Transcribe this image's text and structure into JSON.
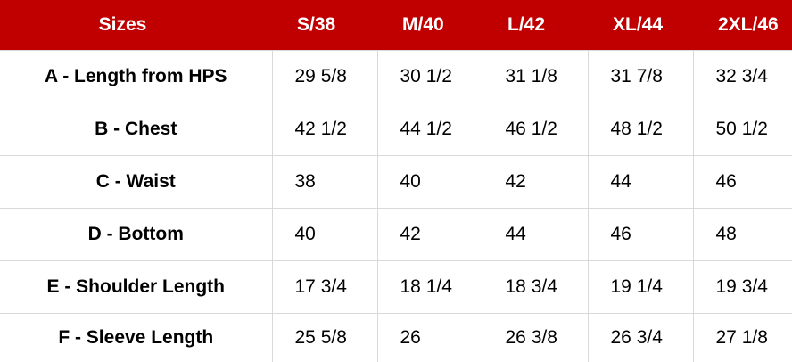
{
  "table": {
    "header": [
      "Sizes",
      "S/38",
      "M/40",
      "L/42",
      "XL/44",
      "2XL/46"
    ],
    "rows": [
      [
        "A - Length from HPS",
        "29 5/8",
        "30 1/2",
        "31 1/8",
        "31 7/8",
        "32 3/4"
      ],
      [
        "B - Chest",
        "42 1/2",
        "44 1/2",
        "46 1/2",
        "48 1/2",
        "50 1/2"
      ],
      [
        "C - Waist",
        "38",
        "40",
        "42",
        "44",
        "46"
      ],
      [
        "D - Bottom",
        "40",
        "42",
        "44",
        "46",
        "48"
      ],
      [
        "E - Shoulder Length",
        "17 3/4",
        "18 1/4",
        "18 3/4",
        "19 1/4",
        "19 3/4"
      ],
      [
        "F - Sleeve Length",
        "25 5/8",
        "26",
        "26 3/8",
        "26 3/4",
        "27 1/8"
      ]
    ]
  }
}
